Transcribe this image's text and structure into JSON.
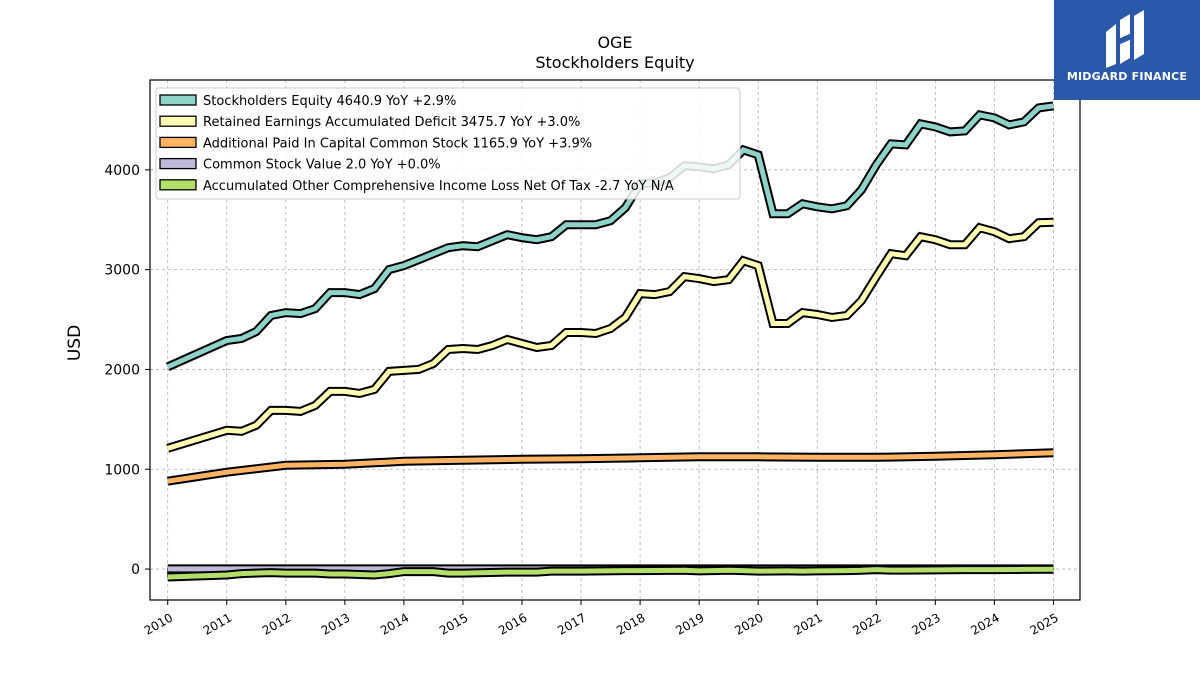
{
  "brand": {
    "name": "MIDGARD FINANCE"
  },
  "chart_data": {
    "type": "line",
    "title": "OGE",
    "subtitle": "Stockholders  Equity",
    "xlabel": "",
    "ylabel": "USD",
    "xlim": [
      2009.7,
      2025.45
    ],
    "ylim": [
      -310,
      4900
    ],
    "x_ticks": [
      "2010",
      "2011",
      "2012",
      "2013",
      "2014",
      "2015",
      "2016",
      "2017",
      "2018",
      "2019",
      "2020",
      "2021",
      "2022",
      "2023",
      "2024",
      "2025"
    ],
    "y_ticks": [
      0,
      1000,
      2000,
      3000,
      4000
    ],
    "grid": true,
    "legend_position": "top-left",
    "series": [
      {
        "name": "Stockholders Equity  4640.9 YoY +2.9%",
        "color": "#8dd3c7",
        "fill_to_zero": false,
        "x": [
          2010.0,
          2011.0,
          2011.25,
          2011.5,
          2011.75,
          2012.0,
          2012.25,
          2012.5,
          2012.75,
          2013.0,
          2013.25,
          2013.5,
          2013.75,
          2014.0,
          2014.25,
          2014.5,
          2014.75,
          2015.0,
          2015.25,
          2015.5,
          2015.75,
          2016.0,
          2016.25,
          2016.5,
          2016.75,
          2017.0,
          2017.25,
          2017.5,
          2017.75,
          2018.0,
          2018.25,
          2018.5,
          2018.75,
          2019.0,
          2019.25,
          2019.5,
          2019.75,
          2020.0,
          2020.25,
          2020.5,
          2020.75,
          2021.0,
          2021.25,
          2021.5,
          2021.75,
          2022.0,
          2022.25,
          2022.5,
          2022.75,
          2023.0,
          2023.25,
          2023.5,
          2023.75,
          2024.0,
          2024.25,
          2024.5,
          2024.75,
          2025.0
        ],
        "y": [
          2025,
          2290,
          2310,
          2380,
          2540,
          2570,
          2560,
          2610,
          2770,
          2770,
          2750,
          2810,
          3000,
          3040,
          3100,
          3160,
          3220,
          3240,
          3230,
          3290,
          3350,
          3320,
          3300,
          3330,
          3450,
          3450,
          3450,
          3490,
          3620,
          3860,
          3870,
          3920,
          4040,
          4030,
          4010,
          4050,
          4200,
          4150,
          3560,
          3560,
          3660,
          3630,
          3610,
          3640,
          3800,
          4050,
          4260,
          4250,
          4460,
          4430,
          4380,
          4390,
          4550,
          4520,
          4450,
          4480,
          4620,
          4640.9
        ]
      },
      {
        "name": "Retained Earnings Accumulated Deficit  3475.7 YoY +3.0%",
        "color": "#ffffb3",
        "fill_to_zero": false,
        "x": [
          2010.0,
          2011.0,
          2011.25,
          2011.5,
          2011.75,
          2012.0,
          2012.25,
          2012.5,
          2012.75,
          2013.0,
          2013.25,
          2013.5,
          2013.75,
          2014.0,
          2014.25,
          2014.5,
          2014.75,
          2015.0,
          2015.25,
          2015.5,
          2015.75,
          2016.0,
          2016.25,
          2016.5,
          2016.75,
          2017.0,
          2017.25,
          2017.5,
          2017.75,
          2018.0,
          2018.25,
          2018.5,
          2018.75,
          2019.0,
          2019.25,
          2019.5,
          2019.75,
          2020.0,
          2020.25,
          2020.5,
          2020.75,
          2021.0,
          2021.25,
          2021.5,
          2021.75,
          2022.0,
          2022.25,
          2022.5,
          2022.75,
          2023.0,
          2023.25,
          2023.5,
          2023.75,
          2024.0,
          2024.25,
          2024.5,
          2024.75,
          2025.0
        ],
        "y": [
          1210,
          1390,
          1380,
          1440,
          1590,
          1590,
          1580,
          1640,
          1780,
          1780,
          1760,
          1800,
          1980,
          1990,
          2000,
          2060,
          2200,
          2210,
          2200,
          2240,
          2300,
          2260,
          2220,
          2240,
          2370,
          2370,
          2360,
          2410,
          2520,
          2760,
          2750,
          2780,
          2930,
          2910,
          2880,
          2900,
          3090,
          3040,
          2460,
          2460,
          2570,
          2550,
          2520,
          2540,
          2690,
          2930,
          3160,
          3140,
          3330,
          3300,
          3250,
          3250,
          3420,
          3380,
          3310,
          3330,
          3470,
          3475.7
        ]
      },
      {
        "name": "Additional Paid In Capital Common Stock  1165.9 YoY +3.9%",
        "color": "#fdb462",
        "fill_to_zero": false,
        "x": [
          2010.0,
          2011.0,
          2012.0,
          2013.0,
          2014.0,
          2015.0,
          2016.0,
          2017.0,
          2018.0,
          2019.0,
          2020.0,
          2021.0,
          2022.0,
          2023.0,
          2024.0,
          2025.0
        ],
        "y": [
          880,
          970,
          1040,
          1050,
          1080,
          1090,
          1100,
          1105,
          1115,
          1125,
          1125,
          1120,
          1120,
          1130,
          1145,
          1165.9
        ]
      },
      {
        "name": "Common Stock Value  2.0 YoY +0.0%",
        "color": "#bebada",
        "fill_to_zero": true,
        "x": [
          2010.0,
          2025.0
        ],
        "y": [
          2.0,
          2.0
        ]
      },
      {
        "name": "Accumulated Other Comprehensive Income Loss Net Of Tax  -2.7 YoY N/A",
        "color": "#b3de69",
        "fill_to_zero": true,
        "x": [
          2010.0,
          2011.0,
          2011.25,
          2011.75,
          2012.0,
          2012.5,
          2012.75,
          2013.0,
          2013.5,
          2013.75,
          2014.0,
          2014.5,
          2014.75,
          2015.0,
          2015.75,
          2016.0,
          2016.25,
          2016.5,
          2016.75,
          2017.0,
          2017.75,
          2018.0,
          2018.75,
          2019.0,
          2019.5,
          2019.75,
          2020.0,
          2020.5,
          2020.75,
          2021.0,
          2021.5,
          2021.75,
          2022.0,
          2022.25,
          2022.5,
          2023.0,
          2023.5,
          2024.0,
          2024.5,
          2025.0
        ],
        "y": [
          -80,
          -60,
          -45,
          -35,
          -40,
          -40,
          -50,
          -50,
          -60,
          -45,
          -25,
          -25,
          -40,
          -40,
          -30,
          -30,
          -30,
          -20,
          -20,
          -20,
          -15,
          -15,
          -12,
          -18,
          -12,
          -15,
          -20,
          -18,
          -20,
          -18,
          -15,
          -12,
          -5,
          -10,
          -10,
          -8,
          -5,
          -5,
          -3,
          -2.7
        ]
      }
    ]
  }
}
